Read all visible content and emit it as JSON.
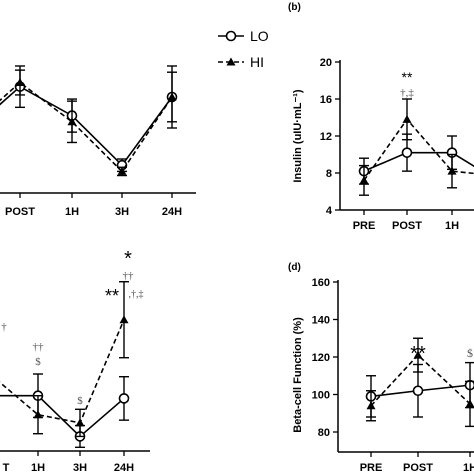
{
  "legend": {
    "lo_label": "LO",
    "hi_label": "HI",
    "lo_marker": "open-circle",
    "hi_marker": "filled-triangle"
  },
  "chart_data": [
    {
      "panel": "a-partial",
      "type": "line",
      "categories": [
        "",
        "POST",
        "1H",
        "3H",
        "24H"
      ],
      "series": [
        {
          "name": "LO",
          "style": "solid",
          "values": [
            null,
            100,
            86,
            62,
            95
          ],
          "err": [
            null,
            10,
            8,
            3,
            15
          ]
        },
        {
          "name": "HI",
          "style": "dashed",
          "values": [
            null,
            102,
            83,
            59,
            95
          ],
          "err": [
            null,
            6,
            10,
            2,
            12
          ]
        }
      ],
      "ylim": [
        50,
        125
      ],
      "first_category_value": {
        "LO": 88,
        "HI": 90
      }
    },
    {
      "panel": "b",
      "panel_label": "(b)",
      "type": "line",
      "ylabel": "Insulin (uIU·mL⁻¹)",
      "categories": [
        "PRE",
        "POST",
        "1H",
        ""
      ],
      "yticks": [
        4,
        8,
        12,
        16,
        20
      ],
      "ylim": [
        4,
        20
      ],
      "series": [
        {
          "name": "LO",
          "style": "solid",
          "values": [
            8.2,
            10.2,
            10.2,
            7.8
          ],
          "err": [
            1.4,
            2.0,
            1.8,
            null
          ]
        },
        {
          "name": "HI",
          "style": "dashed",
          "values": [
            7.2,
            13.8,
            8.2,
            7.8
          ],
          "err": [
            1.6,
            2.2,
            1.8,
            null
          ]
        }
      ],
      "annotations": [
        {
          "category": "POST",
          "text": "**",
          "color": "#000"
        },
        {
          "category": "POST",
          "text": "†,‡",
          "color": "#555"
        }
      ]
    },
    {
      "panel": "c-partial",
      "type": "line",
      "categories": [
        "",
        "1H",
        "3H",
        "24H"
      ],
      "series": [
        {
          "name": "LO",
          "style": "solid",
          "values": [
            100,
            100,
            85,
            99
          ],
          "err": [
            null,
            8,
            4,
            8
          ]
        },
        {
          "name": "HI",
          "style": "dashed",
          "values": [
            108,
            93,
            90,
            128
          ],
          "err": [
            null,
            7,
            5,
            14
          ]
        }
      ],
      "ylim": [
        80,
        150
      ],
      "annotations": [
        {
          "category": "1H",
          "text": "††",
          "color": "#555"
        },
        {
          "category": "1H",
          "text": "$",
          "color": "#555"
        },
        {
          "category": "3H",
          "text": "$",
          "color": "#555"
        },
        {
          "category": "24H",
          "text": "*",
          "color": "#000"
        },
        {
          "category": "24H",
          "text": "††",
          "color": "#555"
        },
        {
          "category": "24H",
          "text": "**",
          "color": "#000"
        },
        {
          "category": "24H",
          "text": ",†,‡",
          "color": "#555"
        }
      ]
    },
    {
      "panel": "d",
      "panel_label": "(d)",
      "type": "line",
      "ylabel": "Beta-cell Function (%)",
      "categories": [
        "PRE",
        "POST",
        "1H"
      ],
      "yticks": [
        80,
        100,
        120,
        140,
        160
      ],
      "ylim": [
        80,
        160
      ],
      "series": [
        {
          "name": "LO",
          "style": "solid",
          "values": [
            99,
            102,
            105
          ],
          "err": [
            11,
            14,
            12
          ]
        },
        {
          "name": "HI",
          "style": "dashed",
          "values": [
            94,
            121,
            95
          ],
          "err": [
            8,
            9,
            12
          ]
        }
      ],
      "annotations": [
        {
          "category": "POST",
          "text": "**",
          "color": "#000"
        },
        {
          "category": "1H",
          "text": "$",
          "color": "#555"
        }
      ]
    }
  ]
}
